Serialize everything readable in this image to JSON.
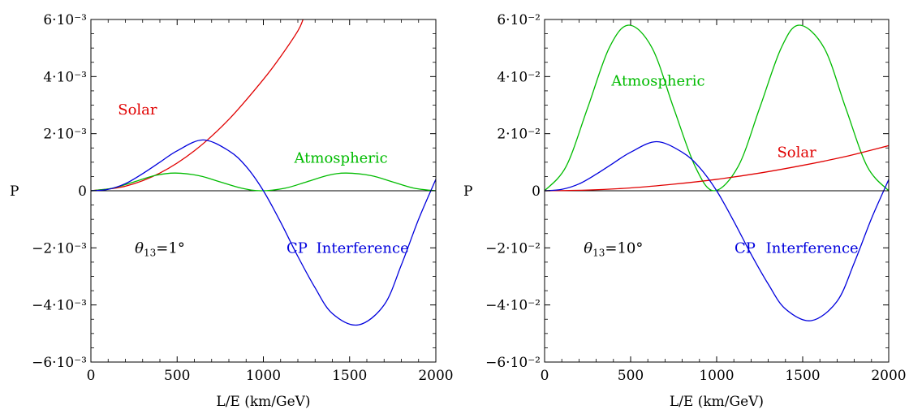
{
  "chart_data": [
    {
      "type": "line",
      "xlabel": "L/E (km/GeV)",
      "ylabel": "P",
      "xlim": [
        0,
        2000
      ],
      "ylim": [
        -0.006,
        0.006
      ],
      "grid": false,
      "x_ticks": [
        0,
        500,
        1000,
        1500,
        2000
      ],
      "x_tick_labels": [
        "0",
        "500",
        "1000",
        "1500",
        "2000"
      ],
      "y_ticks": [
        -0.006,
        -0.004,
        -0.002,
        0,
        0.002,
        0.004,
        0.006
      ],
      "y_tick_labels": [
        "−6·10⁻³",
        "−4·10⁻³",
        "−2·10⁻³",
        "0",
        "2·10⁻³",
        "4·10⁻³",
        "6·10⁻³"
      ],
      "series": [
        {
          "name": "Solar",
          "color": "#e00000",
          "x": [
            0,
            200,
            400,
            600,
            800,
            1000,
            1100,
            1200,
            1230
          ],
          "y": [
            0,
            0.00016,
            0.00062,
            0.0014,
            0.0025,
            0.0039,
            0.0047,
            0.0056,
            0.006
          ]
        },
        {
          "name": "Atmospheric",
          "color": "#00bb00",
          "x": [
            0,
            125,
            250,
            375,
            490,
            625,
            750,
            875,
            985,
            1125,
            1250,
            1375,
            1480,
            1625,
            1750,
            1875,
            2000
          ],
          "y": [
            0,
            9e-05,
            0.00031,
            0.00054,
            0.00062,
            0.00053,
            0.00031,
            9e-05,
            0,
            9e-05,
            0.00031,
            0.00054,
            0.00062,
            0.00053,
            0.00031,
            9e-05,
            0
          ]
        },
        {
          "name": "CP Interference",
          "color": "#0000dd",
          "x": [
            0,
            100,
            200,
            300,
            400,
            500,
            650,
            800,
            900,
            1000,
            1100,
            1200,
            1300,
            1400,
            1550,
            1700,
            1800,
            1900,
            2000
          ],
          "y": [
            0,
            5e-05,
            0.00025,
            0.0006,
            0.001,
            0.0014,
            0.00178,
            0.0014,
            0.00085,
            0,
            -0.0011,
            -0.0023,
            -0.0034,
            -0.0043,
            -0.0047,
            -0.004,
            -0.0026,
            -0.001,
            0.0004
          ]
        }
      ],
      "annotations": [
        {
          "text": "Solar",
          "color": "#e00000",
          "x": 270,
          "y": 0.00285
        },
        {
          "text": "Atmospheric",
          "color": "#00bb00",
          "x": 1450,
          "y": 0.00115
        },
        {
          "text": "CP",
          "color": "#0000dd",
          "x": 1195,
          "y": -0.002
        },
        {
          "text": "Interference",
          "color": "#0000dd",
          "x": 1575,
          "y": -0.002
        }
      ],
      "theta_label": {
        "symbol": "θ",
        "subscript": "13",
        "value": "=1°",
        "x": 400,
        "y": -0.002
      }
    },
    {
      "type": "line",
      "xlabel": "L/E (km/GeV)",
      "ylabel": "P",
      "xlim": [
        0,
        2000
      ],
      "ylim": [
        -0.06,
        0.06
      ],
      "grid": false,
      "x_ticks": [
        0,
        500,
        1000,
        1500,
        2000
      ],
      "x_tick_labels": [
        "0",
        "500",
        "1000",
        "1500",
        "2000"
      ],
      "y_ticks": [
        -0.06,
        -0.04,
        -0.02,
        0,
        0.02,
        0.04,
        0.06
      ],
      "y_tick_labels": [
        "−6·10⁻²",
        "−4·10⁻²",
        "−2·10⁻²",
        "0",
        "2·10⁻²",
        "4·10⁻²",
        "6·10⁻²"
      ],
      "series": [
        {
          "name": "Atmospheric",
          "color": "#00bb00",
          "x": [
            0,
            125,
            250,
            375,
            490,
            625,
            750,
            875,
            985,
            1125,
            1250,
            1375,
            1480,
            1625,
            1750,
            1875,
            2000
          ],
          "y": [
            0,
            0.0085,
            0.029,
            0.05,
            0.058,
            0.05,
            0.029,
            0.0085,
            0,
            0.0085,
            0.029,
            0.05,
            0.058,
            0.05,
            0.029,
            0.0085,
            0
          ]
        },
        {
          "name": "Solar",
          "color": "#e00000",
          "x": [
            0,
            250,
            500,
            750,
            1000,
            1250,
            1500,
            1750,
            2000
          ],
          "y": [
            0,
            0.00025,
            0.001,
            0.0023,
            0.004,
            0.0062,
            0.0089,
            0.012,
            0.0158
          ]
        },
        {
          "name": "CP Interference",
          "color": "#0000dd",
          "x": [
            0,
            100,
            200,
            300,
            400,
            500,
            650,
            800,
            900,
            1000,
            1100,
            1200,
            1300,
            1400,
            1550,
            1700,
            1800,
            1900,
            2000
          ],
          "y": [
            0,
            0.0005,
            0.0024,
            0.0058,
            0.0097,
            0.0135,
            0.0172,
            0.0135,
            0.0082,
            0,
            -0.0107,
            -0.0222,
            -0.0327,
            -0.0414,
            -0.0455,
            -0.0387,
            -0.0252,
            -0.0097,
            0.0039
          ]
        }
      ],
      "annotations": [
        {
          "text": "Atmospheric",
          "color": "#00bb00",
          "x": 660,
          "y": 0.0385
        },
        {
          "text": "Solar",
          "color": "#e00000",
          "x": 1465,
          "y": 0.0135
        },
        {
          "text": "CP",
          "color": "#0000dd",
          "x": 1165,
          "y": -0.02
        },
        {
          "text": "Interference",
          "color": "#0000dd",
          "x": 1555,
          "y": -0.02
        }
      ],
      "theta_label": {
        "symbol": "θ",
        "subscript": "13",
        "value": "=10°",
        "x": 400,
        "y": -0.02
      }
    }
  ]
}
